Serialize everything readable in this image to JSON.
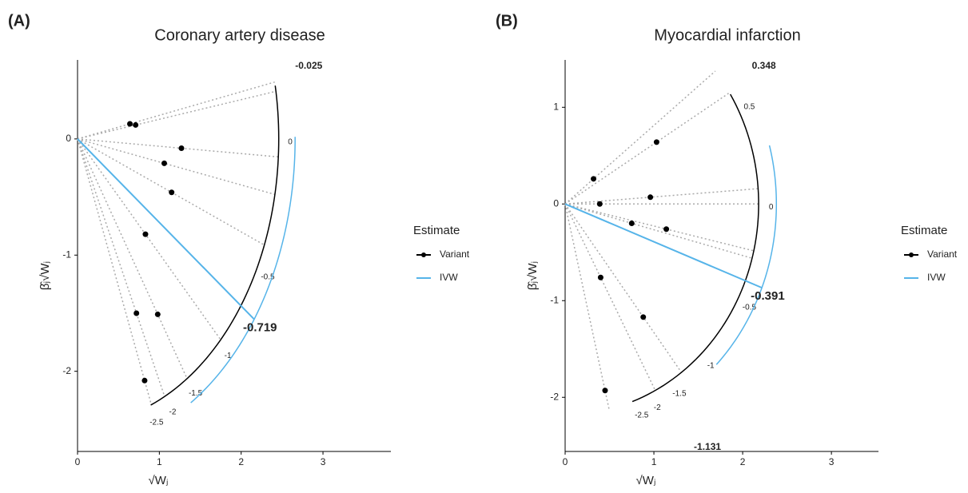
{
  "chart_data": [
    {
      "type": "radial",
      "panel_label": "(A)",
      "title": "Coronary artery disease",
      "xlabel": "√Wⱼ",
      "ylabel": "β̂ⱼ√Wⱼ",
      "xlim": [
        0,
        3.83
      ],
      "ylim": [
        -2.69,
        0.68
      ],
      "xticks": [
        0,
        1,
        2,
        3
      ],
      "yticks": [
        -2,
        -1,
        0
      ],
      "scale_ticks": [
        -2.5,
        -2,
        -1.5,
        -1,
        -0.5,
        0
      ],
      "arc_lim": [
        -2.56,
        0.19
      ],
      "max_label": -0.025,
      "legend_title": "Estimate",
      "series": [
        {
          "name": "Variant",
          "color": "#000000",
          "x": [
            0.64,
            0.71,
            1.27,
            1.06,
            1.15,
            0.83,
            0.72,
            0.98,
            0.82
          ],
          "values": [
            0.13,
            0.12,
            -0.08,
            -0.21,
            -0.46,
            -0.82,
            -1.5,
            -1.51,
            -2.08
          ]
        },
        {
          "name": "IVW",
          "color": "#56B4E9",
          "values": [
            -0.719
          ]
        }
      ]
    },
    {
      "type": "radial",
      "panel_label": "(B)",
      "title": "Myocardial infarction",
      "xlabel": "√Wⱼ",
      "ylabel": "β̂ⱼ√Wⱼ",
      "xlim": [
        0,
        3.53
      ],
      "ylim": [
        -2.56,
        1.49
      ],
      "xticks": [
        0,
        1,
        2,
        3
      ],
      "yticks": [
        -2,
        -1,
        0,
        1
      ],
      "scale_ticks": [
        -2.5,
        -2,
        -1.5,
        -1,
        -0.5,
        0,
        0.5
      ],
      "arc_lim": [
        -2.7,
        0.61
      ],
      "max_label": 0.348,
      "min_label": -1.131,
      "legend_title": "Estimate",
      "series": [
        {
          "name": "Variant",
          "color": "#000000",
          "x": [
            1.03,
            0.32,
            0.96,
            0.39,
            0.75,
            1.14,
            0.4,
            0.88,
            0.45
          ],
          "values": [
            0.64,
            0.26,
            0.07,
            0.0,
            -0.2,
            -0.26,
            -0.76,
            -1.17,
            -1.93
          ]
        },
        {
          "name": "IVW",
          "color": "#56B4E9",
          "values": [
            -0.391
          ]
        }
      ]
    }
  ]
}
